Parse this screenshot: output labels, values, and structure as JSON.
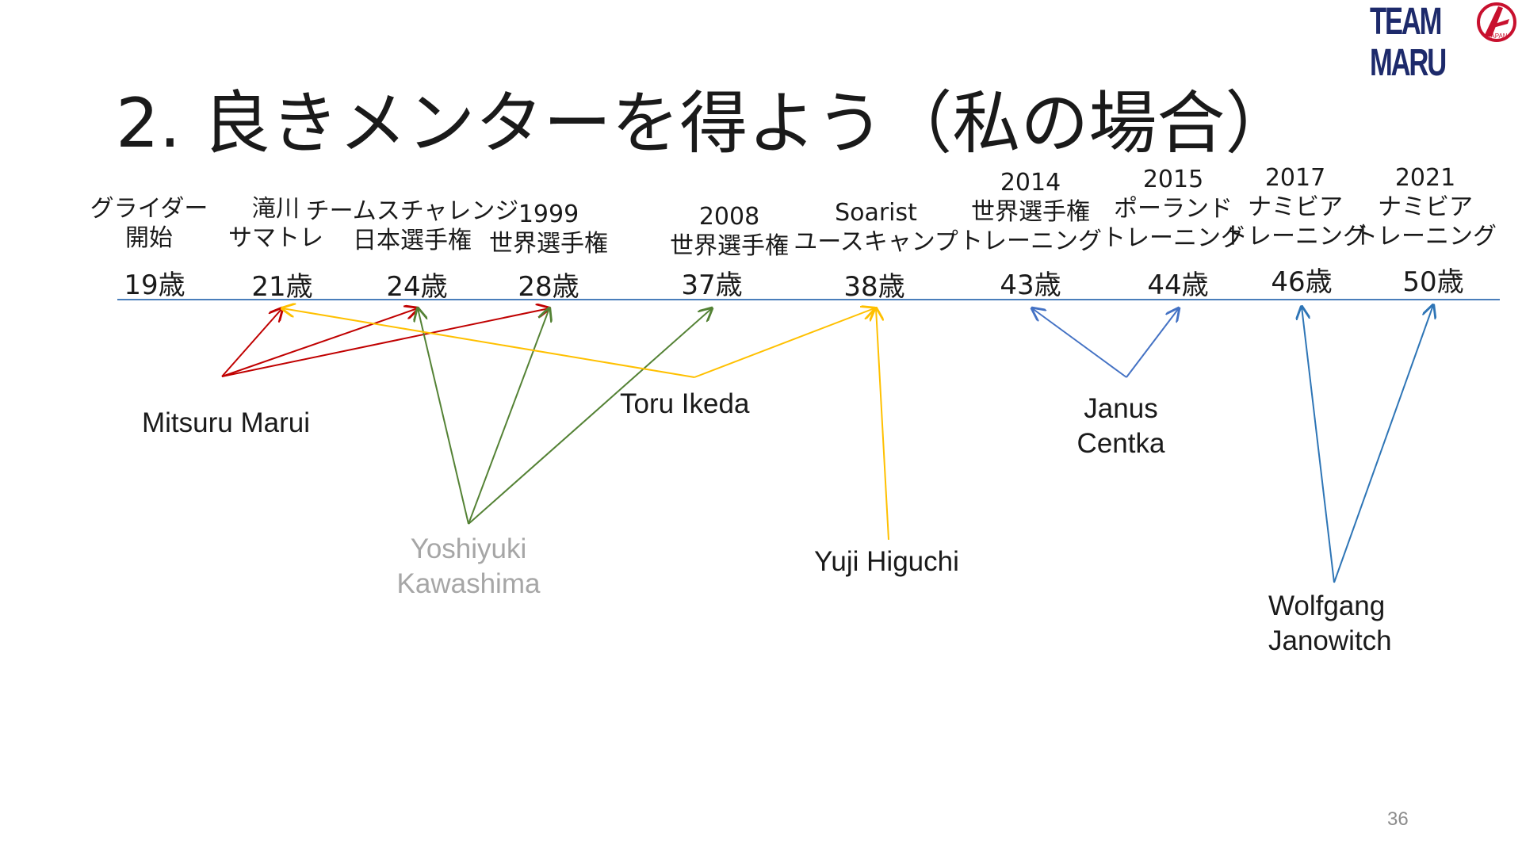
{
  "logo": {
    "text": "TEAM MARU",
    "mark_text": "JAPAN",
    "brand_color": "#1d2a6b",
    "mark_color": "#c8102e"
  },
  "title": "2. 良きメンターを得よう（私の場合）",
  "timeline": [
    {
      "event": [
        "グライダー",
        "開始"
      ],
      "age": "19歳"
    },
    {
      "event": [
        "滝川",
        "サマトレ"
      ],
      "age": "21歳"
    },
    {
      "event": [
        "チームスチャレンジ",
        "日本選手権"
      ],
      "age": "24歳"
    },
    {
      "event": [
        "1999",
        "世界選手権"
      ],
      "age": "28歳"
    },
    {
      "event": [
        "2008",
        "世界選手権"
      ],
      "age": "37歳"
    },
    {
      "event": [
        "Soarist",
        "ユースキャンプ"
      ],
      "age": "38歳"
    },
    {
      "event": [
        "2014",
        "世界選手権",
        "トレーニング"
      ],
      "age": "43歳"
    },
    {
      "event": [
        "2015",
        "ポーランド",
        "トレーニング"
      ],
      "age": "44歳"
    },
    {
      "event": [
        "2017",
        "ナミビア",
        "トレーニング"
      ],
      "age": "46歳"
    },
    {
      "event": [
        "2021",
        "ナミビア",
        "トレーニング"
      ],
      "age": "50歳"
    }
  ],
  "mentors": [
    {
      "name": [
        "Mitsuru Marui"
      ],
      "color": "#c00000",
      "points_to": [
        "21歳",
        "24歳",
        "28歳"
      ]
    },
    {
      "name": [
        "Yoshiyuki",
        "Kawashima"
      ],
      "color": "#548235",
      "points_to": [
        "24歳",
        "28歳",
        "37歳"
      ]
    },
    {
      "name": [
        "Toru Ikeda"
      ],
      "color": "#ffc000",
      "points_to": [
        "21歳",
        "38歳"
      ]
    },
    {
      "name": [
        "Yuji Higuchi"
      ],
      "color": "#ffc000",
      "points_to": [
        "38歳"
      ]
    },
    {
      "name": [
        "Janus",
        "Centka"
      ],
      "color": "#4472c4",
      "points_to": [
        "43歳",
        "44歳"
      ]
    },
    {
      "name": [
        "Wolfgang",
        "Janowitch"
      ],
      "color": "#2e75b6",
      "points_to": [
        "46歳",
        "50歳"
      ]
    }
  ],
  "timeline_color": "#4a7ebb",
  "page_number": "36"
}
